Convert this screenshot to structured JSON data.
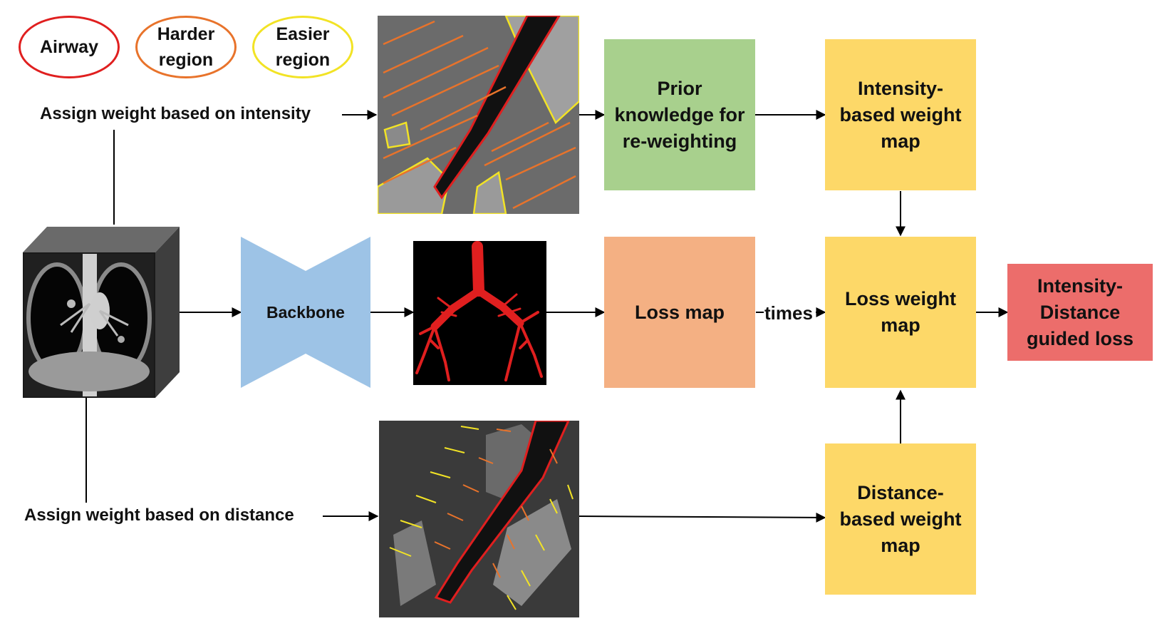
{
  "legend": {
    "airway": "Airway",
    "harder": "Harder\nregion",
    "easier": "Easier\nregion"
  },
  "labels": {
    "intensity": "Assign weight based on intensity",
    "distance": "Assign weight based on distance",
    "times": "times"
  },
  "boxes": {
    "backbone": "Backbone",
    "prior": "Prior\nknowledge for\nre-weighting",
    "intensity_map": "Intensity-\nbased weight\nmap",
    "loss_map": "Loss map",
    "loss_weight_map": "Loss weight\nmap",
    "distance_map": "Distance-\nbased weight\nmap",
    "output": "Intensity-\nDistance\nguided loss"
  },
  "colors": {
    "airway": "#e01f1f",
    "harder": "#e8732b",
    "easier": "#f2e325",
    "prior_green": "#a8d08d",
    "yellow": "#fdd868",
    "loss_orange": "#f4b083",
    "output_red": "#ec6d6b",
    "backbone_blue": "#9dc3e6"
  }
}
